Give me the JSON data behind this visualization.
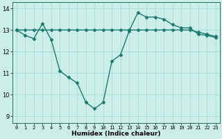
{
  "line1_x": [
    0,
    1,
    2,
    3,
    4,
    5,
    6,
    7,
    8,
    9,
    10,
    11,
    12,
    13,
    14,
    15,
    16,
    17,
    18,
    19,
    20,
    21,
    22,
    23
  ],
  "line1_y": [
    13.0,
    13.0,
    13.0,
    13.0,
    13.0,
    13.0,
    13.0,
    13.0,
    13.0,
    13.0,
    13.0,
    13.0,
    13.0,
    13.0,
    13.0,
    13.0,
    13.0,
    13.0,
    13.0,
    13.0,
    13.0,
    12.9,
    12.8,
    12.7
  ],
  "line2_x": [
    0,
    1,
    2,
    3,
    4,
    5,
    6,
    7,
    8,
    9,
    10,
    11,
    12,
    13,
    14,
    15,
    16,
    17,
    18,
    19,
    20,
    21,
    22,
    23
  ],
  "line2_y": [
    13.0,
    12.75,
    12.6,
    13.3,
    12.55,
    11.1,
    10.8,
    10.55,
    9.65,
    9.35,
    9.65,
    11.55,
    11.85,
    12.95,
    13.8,
    13.6,
    13.6,
    13.5,
    13.25,
    13.1,
    13.1,
    12.8,
    12.75,
    12.65
  ],
  "line_color": "#1a7a6e",
  "bg_color": "#cceee8",
  "grid_color": "#aaddda",
  "xlabel": "Humidex (Indice chaleur)",
  "ylim": [
    8.7,
    14.3
  ],
  "xlim": [
    -0.5,
    23.5
  ],
  "yticks": [
    9,
    10,
    11,
    12,
    13,
    14
  ],
  "xticks": [
    0,
    1,
    2,
    3,
    4,
    5,
    6,
    7,
    8,
    9,
    10,
    11,
    12,
    13,
    14,
    15,
    16,
    17,
    18,
    19,
    20,
    21,
    22,
    23
  ],
  "marker": "D",
  "marker_size": 2.5,
  "line_width": 1.0
}
